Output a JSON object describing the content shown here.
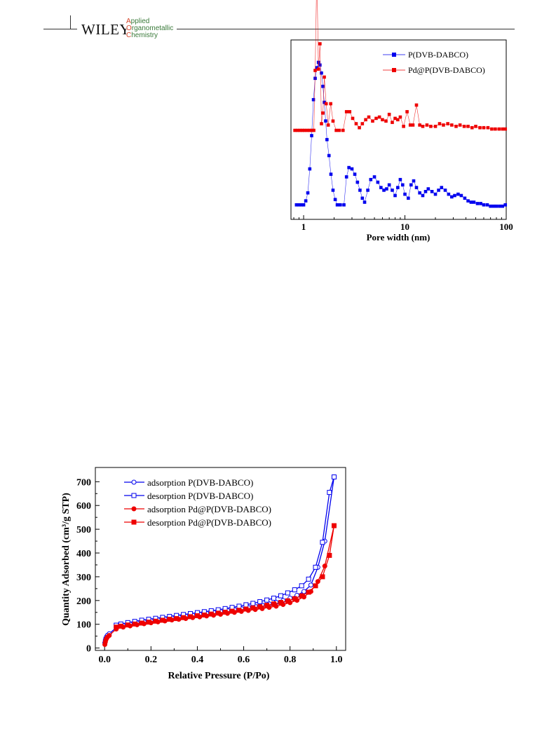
{
  "header": {
    "publisher": "WILEY",
    "journal_lines": [
      {
        "initial": "A",
        "rest": "pplied"
      },
      {
        "initial": "O",
        "rest": "rganometallic"
      },
      {
        "initial": "C",
        "rest": "hemistry"
      }
    ],
    "colors": {
      "initial": "#d6452a",
      "rest": "#3a7a3a"
    }
  },
  "chart_data": [
    {
      "type": "line",
      "title": "",
      "xlabel": "Pore width (nm)",
      "ylabel": "",
      "x_scale": "log",
      "xlim": [
        0.75,
        100
      ],
      "x_ticks": [
        1,
        10,
        100
      ],
      "x_tick_labels": [
        "1",
        "10",
        "100"
      ],
      "y_ticks_shown": false,
      "legend_position": "top-right",
      "series": [
        {
          "name": "P(DVB-DABCO)",
          "color": "#0000ee",
          "marker": "filled-square",
          "x": [
            0.85,
            0.9,
            0.95,
            1.0,
            1.05,
            1.1,
            1.15,
            1.2,
            1.25,
            1.3,
            1.35,
            1.4,
            1.45,
            1.5,
            1.55,
            1.6,
            1.65,
            1.7,
            1.78,
            1.86,
            1.95,
            2.05,
            2.15,
            2.3,
            2.5,
            2.65,
            2.8,
            3.0,
            3.2,
            3.4,
            3.6,
            3.8,
            4.0,
            4.3,
            4.6,
            5.0,
            5.4,
            5.8,
            6.2,
            6.6,
            7.0,
            7.5,
            8.0,
            8.5,
            9.0,
            9.5,
            10.0,
            10.8,
            11.5,
            12.2,
            13.0,
            14.0,
            15.0,
            16.0,
            17.0,
            18.5,
            20.0,
            21.5,
            23.0,
            25.0,
            27.0,
            29.0,
            31.0,
            33.5,
            36.0,
            39.0,
            42.0,
            45.0,
            48.0,
            52.0,
            56.0,
            60.0,
            65.0,
            70.0,
            75.0,
            80.0,
            86.0,
            92.0,
            98.0
          ],
          "values": [
            0.3,
            0.3,
            0.3,
            0.3,
            0.6,
            1.2,
            3.0,
            5.5,
            8.2,
            9.8,
            10.6,
            11.0,
            10.8,
            10.2,
            9.2,
            8.0,
            6.6,
            5.2,
            4.0,
            2.6,
            1.4,
            0.7,
            0.3,
            0.3,
            0.3,
            2.4,
            3.1,
            3.0,
            2.6,
            2.0,
            1.4,
            0.8,
            0.5,
            1.4,
            2.2,
            2.4,
            2.0,
            1.6,
            1.4,
            1.5,
            1.8,
            1.4,
            1.0,
            1.6,
            2.2,
            1.8,
            1.1,
            0.8,
            1.8,
            2.1,
            1.6,
            1.2,
            1.0,
            1.3,
            1.5,
            1.3,
            1.1,
            1.4,
            1.6,
            1.4,
            1.1,
            0.9,
            1.0,
            1.1,
            1.0,
            0.8,
            0.6,
            0.5,
            0.5,
            0.4,
            0.4,
            0.3,
            0.3,
            0.2,
            0.2,
            0.2,
            0.2,
            0.2,
            0.3
          ]
        },
        {
          "name": "Pd@P(DVB-DABCO)",
          "color": "#ee0000",
          "marker": "filled-square",
          "x": [
            0.82,
            0.87,
            0.92,
            0.97,
            1.02,
            1.08,
            1.14,
            1.2,
            1.26,
            1.3,
            1.35,
            1.4,
            1.45,
            1.5,
            1.55,
            1.6,
            1.67,
            1.75,
            1.85,
            1.95,
            2.1,
            2.25,
            2.45,
            2.65,
            2.85,
            3.05,
            3.3,
            3.55,
            3.8,
            4.1,
            4.4,
            4.8,
            5.2,
            5.6,
            6.0,
            6.5,
            7.0,
            7.5,
            8.0,
            8.5,
            9.0,
            9.7,
            10.5,
            11.3,
            12.0,
            13.0,
            14.0,
            15.0,
            16.5,
            18.0,
            20.0,
            22.0,
            24.0,
            26.5,
            29.0,
            32.0,
            35.0,
            38.5,
            42.0,
            46.0,
            50.0,
            55.0,
            60.0,
            66.0,
            72.0,
            78.0,
            85.0,
            92.0,
            98.0
          ],
          "values": [
            0,
            0,
            0,
            0,
            0,
            0,
            0,
            0,
            0,
            4.5,
            12.0,
            4.6,
            6.5,
            0.5,
            1.3,
            4.0,
            2.0,
            0.4,
            2.0,
            0.7,
            0,
            0,
            0,
            1.4,
            1.4,
            0.9,
            0.5,
            0.2,
            0.5,
            0.8,
            1.0,
            0.7,
            0.9,
            1.0,
            0.8,
            0.7,
            1.2,
            0.6,
            0.9,
            0.8,
            1.0,
            0.3,
            1.4,
            0.4,
            0.4,
            1.9,
            0.4,
            0.3,
            0.4,
            0.3,
            0.3,
            0.5,
            0.4,
            0.5,
            0.4,
            0.3,
            0.4,
            0.3,
            0.3,
            0.2,
            0.3,
            0.2,
            0.2,
            0.2,
            0.1,
            0.1,
            0.1,
            0.1,
            0.1
          ]
        }
      ]
    },
    {
      "type": "line",
      "title": "",
      "xlabel": "Relative Pressure (P/Po)",
      "ylabel": "Quantity Adsorbed (cm³/g STP)",
      "xlim": [
        -0.04,
        1.04
      ],
      "ylim": [
        -10,
        760
      ],
      "x_ticks": [
        0.0,
        0.2,
        0.4,
        0.6,
        0.8,
        1.0
      ],
      "x_tick_labels": [
        "0.0",
        "0.2",
        "0.4",
        "0.6",
        "0.8",
        "1.0"
      ],
      "y_ticks": [
        0,
        100,
        200,
        300,
        400,
        500,
        600,
        700
      ],
      "y_tick_labels": [
        "0",
        "100",
        "200",
        "300",
        "400",
        "500",
        "600",
        "700"
      ],
      "legend_position": "top-left",
      "series": [
        {
          "name": "adsorption P(DVB-DABCO)",
          "color": "#0000ee",
          "marker": "open-circle",
          "x": [
            0.001,
            0.003,
            0.005,
            0.008,
            0.012,
            0.02,
            0.05,
            0.08,
            0.11,
            0.14,
            0.17,
            0.2,
            0.23,
            0.26,
            0.29,
            0.32,
            0.35,
            0.38,
            0.41,
            0.44,
            0.47,
            0.5,
            0.53,
            0.56,
            0.59,
            0.62,
            0.65,
            0.68,
            0.71,
            0.74,
            0.77,
            0.8,
            0.83,
            0.86,
            0.89,
            0.92,
            0.95,
            0.99
          ],
          "values": [
            22,
            32,
            40,
            47,
            53,
            60,
            86,
            95,
            101,
            106,
            111,
            115,
            119,
            123,
            127,
            131,
            134,
            138,
            142,
            146,
            150,
            154,
            158,
            162,
            166,
            171,
            176,
            181,
            186,
            192,
            200,
            210,
            222,
            238,
            265,
            340,
            450,
            720
          ]
        },
        {
          "name": "desorption P(DVB-DABCO)",
          "color": "#0000ee",
          "marker": "open-square",
          "x": [
            0.99,
            0.97,
            0.94,
            0.91,
            0.88,
            0.85,
            0.82,
            0.79,
            0.76,
            0.73,
            0.7,
            0.67,
            0.64,
            0.61,
            0.58,
            0.55,
            0.52,
            0.49,
            0.46,
            0.43,
            0.4,
            0.37,
            0.34,
            0.31,
            0.28,
            0.25,
            0.22,
            0.19,
            0.16,
            0.13,
            0.1,
            0.07,
            0.05
          ],
          "values": [
            720,
            655,
            445,
            340,
            290,
            262,
            245,
            232,
            220,
            210,
            202,
            195,
            188,
            182,
            176,
            171,
            166,
            161,
            157,
            153,
            149,
            145,
            141,
            137,
            133,
            129,
            125,
            121,
            117,
            112,
            107,
            101,
            96
          ]
        },
        {
          "name": "adsorption Pd@P(DVB-DABCO)",
          "color": "#ee0000",
          "marker": "filled-circle",
          "x": [
            0.001,
            0.003,
            0.005,
            0.008,
            0.012,
            0.02,
            0.05,
            0.08,
            0.11,
            0.14,
            0.17,
            0.2,
            0.23,
            0.26,
            0.29,
            0.32,
            0.35,
            0.38,
            0.41,
            0.44,
            0.47,
            0.5,
            0.53,
            0.56,
            0.59,
            0.62,
            0.65,
            0.68,
            0.71,
            0.74,
            0.77,
            0.8,
            0.83,
            0.86,
            0.89,
            0.92,
            0.95,
            0.99
          ],
          "values": [
            15,
            25,
            33,
            40,
            46,
            53,
            80,
            88,
            93,
            98,
            102,
            106,
            110,
            114,
            118,
            121,
            124,
            128,
            131,
            135,
            138,
            142,
            146,
            150,
            154,
            158,
            162,
            166,
            171,
            176,
            183,
            191,
            201,
            215,
            238,
            280,
            345,
            515
          ]
        },
        {
          "name": "desorption Pd@P(DVB-DABCO)",
          "color": "#ee0000",
          "marker": "filled-square",
          "x": [
            0.99,
            0.97,
            0.94,
            0.91,
            0.88,
            0.85,
            0.82,
            0.79,
            0.76,
            0.73,
            0.7,
            0.67,
            0.64,
            0.61,
            0.58,
            0.55,
            0.52,
            0.49,
            0.46,
            0.43,
            0.4,
            0.37,
            0.34,
            0.31,
            0.28,
            0.25,
            0.22,
            0.19,
            0.16,
            0.13,
            0.1,
            0.07,
            0.05
          ],
          "values": [
            515,
            390,
            300,
            262,
            235,
            220,
            208,
            199,
            192,
            186,
            180,
            174,
            169,
            164,
            159,
            155,
            151,
            147,
            143,
            139,
            136,
            132,
            128,
            124,
            121,
            117,
            113,
            109,
            105,
            101,
            97,
            92,
            88
          ]
        }
      ]
    }
  ]
}
